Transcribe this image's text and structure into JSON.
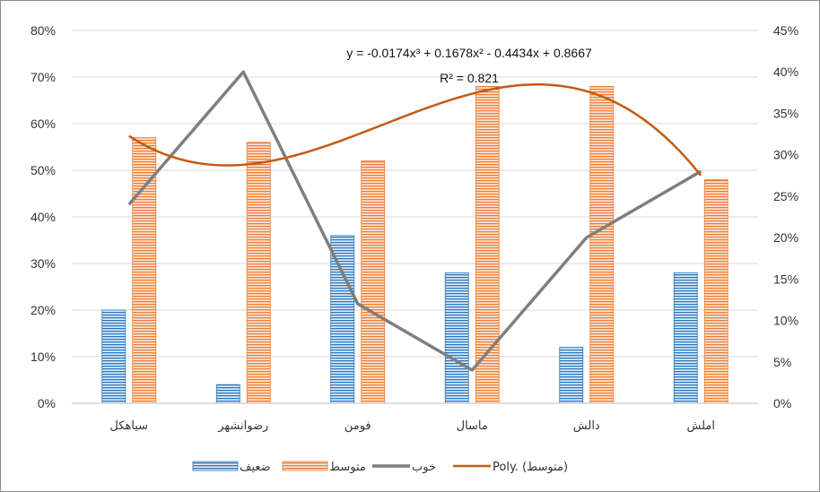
{
  "chart_data": {
    "type": "bar",
    "categories": [
      "سیاهکل",
      "رضوانشهر",
      "فومن",
      "ماسال",
      "دالش",
      "املش"
    ],
    "series": [
      {
        "name": "ضعیف",
        "kind": "bar",
        "axis": "left",
        "color": "#2e75b6",
        "values": [
          20,
          4,
          36,
          28,
          12,
          28
        ]
      },
      {
        "name": "متوسط",
        "kind": "bar",
        "axis": "left",
        "color": "#ed7d31",
        "values": [
          57,
          56,
          52,
          68,
          68,
          48
        ]
      },
      {
        "name": "خوب",
        "kind": "line",
        "axis": "right",
        "color": "#7f7f7f",
        "values": [
          24,
          40,
          12,
          4,
          20,
          28
        ]
      },
      {
        "name": "Poly. (متوسط)",
        "kind": "trendline",
        "axis": "left",
        "color": "#c55a11",
        "coefficients": [
          -0.0174,
          0.1678,
          -0.4434,
          0.8667
        ]
      }
    ],
    "left_axis": {
      "min": 0,
      "max": 80,
      "step": 10,
      "tick_labels": [
        "0%",
        "10%",
        "20%",
        "30%",
        "40%",
        "50%",
        "60%",
        "70%",
        "80%"
      ]
    },
    "right_axis": {
      "min": 0,
      "max": 45,
      "step": 5,
      "tick_labels": [
        "0%",
        "5%",
        "10%",
        "15%",
        "20%",
        "25%",
        "30%",
        "35%",
        "40%",
        "45%"
      ]
    },
    "trendline_equation": "y = -0.0174x³ + 0.1678x² - 0.4434x + 0.8667",
    "trendline_r2": "R² = 0.821",
    "grid": true,
    "legend_position": "bottom",
    "legend": [
      {
        "label": "ضعیف",
        "marker": "bar-blue"
      },
      {
        "label": "متوسط",
        "marker": "bar-orange"
      },
      {
        "label": "خوب",
        "marker": "line-gray"
      },
      {
        "label": "Poly. (متوسط)",
        "marker": "line-orange"
      }
    ]
  }
}
